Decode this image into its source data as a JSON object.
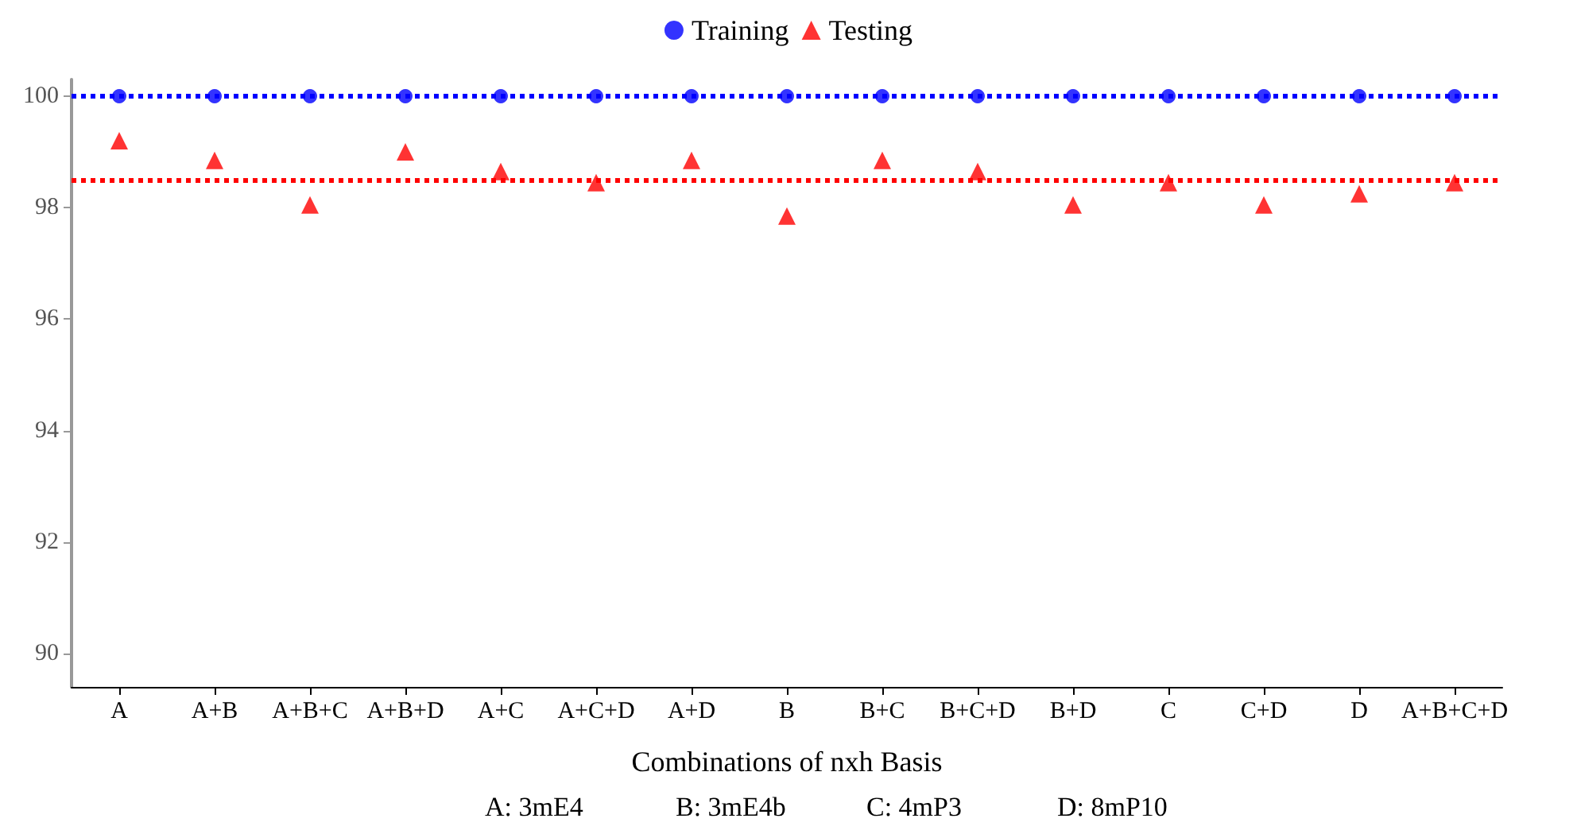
{
  "chart_data": {
    "type": "scatter",
    "xlabel": "Combinations of nxh Basis",
    "categories": [
      "A",
      "A+B",
      "A+B+C",
      "A+B+D",
      "A+C",
      "A+C+D",
      "A+D",
      "B",
      "B+C",
      "B+C+D",
      "B+D",
      "C",
      "C+D",
      "D",
      "A+B+C+D"
    ],
    "series": [
      {
        "name": "Training",
        "color": "#0000ff",
        "marker": "circle",
        "values": [
          100,
          100,
          100,
          100,
          100,
          100,
          100,
          100,
          100,
          100,
          100,
          100,
          100,
          100,
          100
        ]
      },
      {
        "name": "Testing",
        "color": "#ff0000",
        "marker": "triangle",
        "values": [
          99.2,
          98.85,
          98.05,
          99.0,
          98.65,
          98.45,
          98.85,
          97.85,
          98.85,
          98.65,
          98.05,
          98.45,
          98.05,
          98.25,
          98.45
        ]
      }
    ],
    "ref_lines": [
      {
        "axis": "y",
        "value": 100,
        "color": "#0000ff",
        "line_style": "dotted"
      },
      {
        "axis": "y",
        "value": 98.5,
        "color": "#ff0000",
        "line_style": "dotted"
      }
    ],
    "ylim": [
      89.4,
      100.3
    ],
    "yticks": [
      90,
      92,
      94,
      96,
      98,
      100
    ],
    "grid": false,
    "legend": "top",
    "annotations": [
      "A: 3mE4",
      "B: 3mE4b",
      "C: 4mP3",
      "D: 8mP10"
    ]
  }
}
